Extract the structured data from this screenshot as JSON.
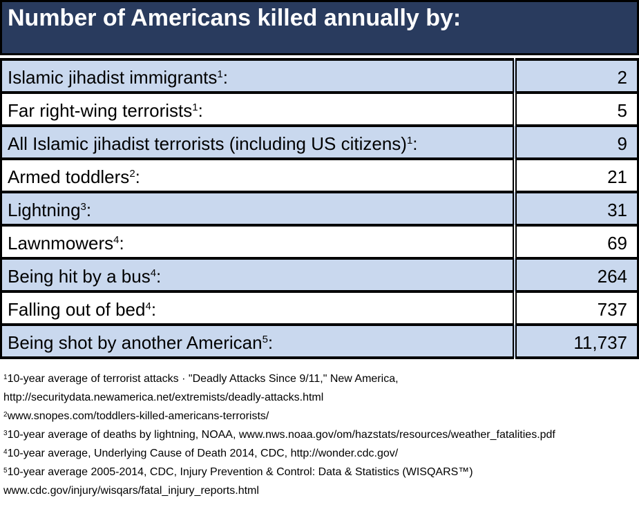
{
  "title": "Number of Americans killed annually by:",
  "chart_data": {
    "type": "table",
    "title": "Number of Americans killed annually by:",
    "label_suffix": ":",
    "rows": [
      {
        "label": "Islamic jihadist immigrants",
        "footnote_marker": "1",
        "value": "2"
      },
      {
        "label": "Far right-wing terrorists",
        "footnote_marker": "1",
        "value": "5"
      },
      {
        "label": "All Islamic jihadist terrorists (including US citizens)",
        "footnote_marker": "1",
        "value": "9"
      },
      {
        "label": "Armed toddlers",
        "footnote_marker": "2",
        "value": "21"
      },
      {
        "label": "Lightning",
        "footnote_marker": "3",
        "value": "31"
      },
      {
        "label": "Lawnmowers",
        "footnote_marker": "4",
        "value": "69"
      },
      {
        "label": "Being hit by a bus",
        "footnote_marker": "4",
        "value": "264"
      },
      {
        "label": "Falling out of bed",
        "footnote_marker": "4",
        "value": "737"
      },
      {
        "label": "Being shot by another American",
        "footnote_marker": "5",
        "value": "11,737"
      }
    ],
    "values": [
      2,
      5,
      9,
      21,
      31,
      69,
      264,
      737,
      11737
    ]
  },
  "footnotes": [
    {
      "marker": "1",
      "lines": [
        "10-year average of terrorist attacks · \"Deadly Attacks Since 9/11,\" New America,",
        "http://securitydata.newamerica.net/extremists/deadly-attacks.html"
      ]
    },
    {
      "marker": "2",
      "lines": [
        "www.snopes.com/toddlers-killed-americans-terrorists/"
      ]
    },
    {
      "marker": "3",
      "lines": [
        "10-year average of deaths by lightning, NOAA, www.nws.noaa.gov/om/hazstats/resources/weather_fatalities.pdf"
      ]
    },
    {
      "marker": "4",
      "lines": [
        "10-year average, Underlying Cause of Death 2014, CDC, http://wonder.cdc.gov/"
      ]
    },
    {
      "marker": "5",
      "lines": [
        "10-year average 2005-2014, CDC, Injury Prevention & Control: Data & Statistics (WISQARS™)",
        "www.cdc.gov/injury/wisqars/fatal_injury_reports.html"
      ]
    }
  ],
  "colors": {
    "header_bg": "#293B5E",
    "header_text": "#FFFFFF",
    "row_alt_bg": "#C9D8EE",
    "row_bg": "#FFFFFF",
    "border": "#000000",
    "text": "#000000"
  }
}
